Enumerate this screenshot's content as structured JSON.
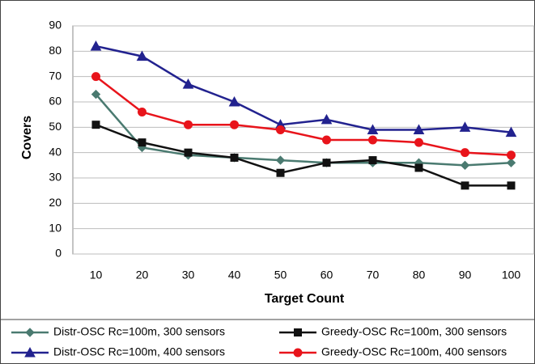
{
  "chart_data": {
    "type": "line",
    "x_label": "Target Count",
    "y_label": "Covers",
    "categories": [
      "10",
      "20",
      "30",
      "40",
      "50",
      "60",
      "70",
      "80",
      "90",
      "100"
    ],
    "series": [
      {
        "name": "Distr-OSC Rc=100m, 300 sensors",
        "color": "#4a7a70",
        "marker": "diamond",
        "values": [
          63,
          42,
          39,
          38,
          37,
          36,
          36,
          36,
          35,
          36
        ]
      },
      {
        "name": "Greedy-OSC Rc=100m, 300 sensors",
        "color": "#111111",
        "marker": "square",
        "values": [
          51,
          44,
          40,
          38,
          32,
          36,
          37,
          34,
          27,
          27
        ]
      },
      {
        "name": "Distr-OSC Rc=100m, 400 sensors",
        "color": "#22228f",
        "marker": "triangle",
        "values": [
          82,
          78,
          67,
          60,
          51,
          53,
          49,
          49,
          50,
          48
        ]
      },
      {
        "name": "Greedy-OSC Rc=100m, 400 sensors",
        "color": "#e8141b",
        "marker": "circle",
        "values": [
          70,
          56,
          51,
          51,
          49,
          45,
          45,
          44,
          40,
          39
        ]
      }
    ],
    "ylim": [
      0,
      90
    ],
    "yticks": [
      0,
      10,
      20,
      30,
      40,
      50,
      60,
      70,
      80,
      90
    ],
    "grid": true
  }
}
